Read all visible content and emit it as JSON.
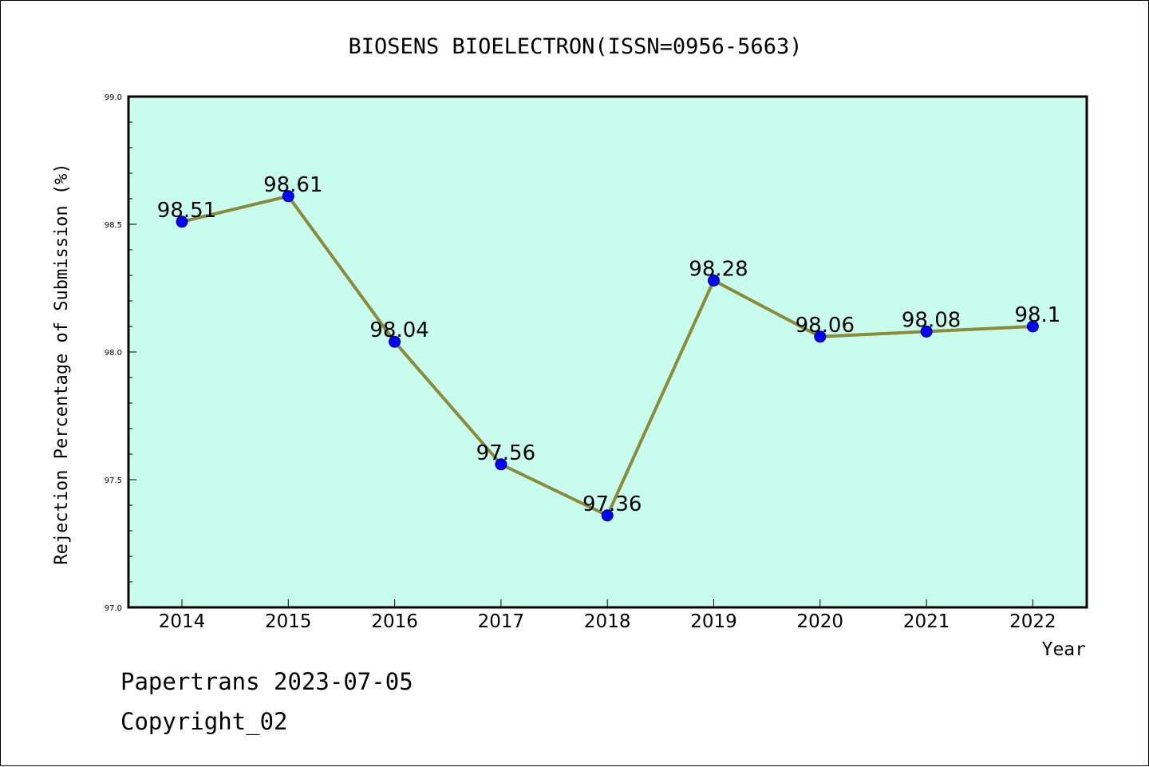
{
  "chart_data": {
    "type": "line",
    "title": "BIOSENS BIOELECTRON(ISSN=0956-5663)",
    "xlabel": "Year",
    "ylabel": "Rejection Percentage of Submission (%)",
    "ylim": [
      97.0,
      99.0
    ],
    "yticks": [
      "97.0",
      "97.5",
      "98.0",
      "98.5",
      "99.0"
    ],
    "categories": [
      "2014",
      "2015",
      "2016",
      "2017",
      "2018",
      "2019",
      "2020",
      "2021",
      "2022"
    ],
    "series": [
      {
        "values": [
          98.51,
          98.61,
          98.04,
          97.56,
          97.36,
          98.28,
          98.06,
          98.08,
          98.1
        ],
        "labels": [
          "98.51",
          "98.61",
          "98.04",
          "97.56",
          "97.36",
          "98.28",
          "98.06",
          "98.08",
          "98.1"
        ]
      }
    ],
    "grid": false,
    "colors": {
      "plot_background": "#c8fcec",
      "line": "#8b8b3a",
      "marker": "#0000ff"
    }
  },
  "footer": {
    "line1": "Papertrans 2023-07-05",
    "line2": "Copyright_02"
  }
}
